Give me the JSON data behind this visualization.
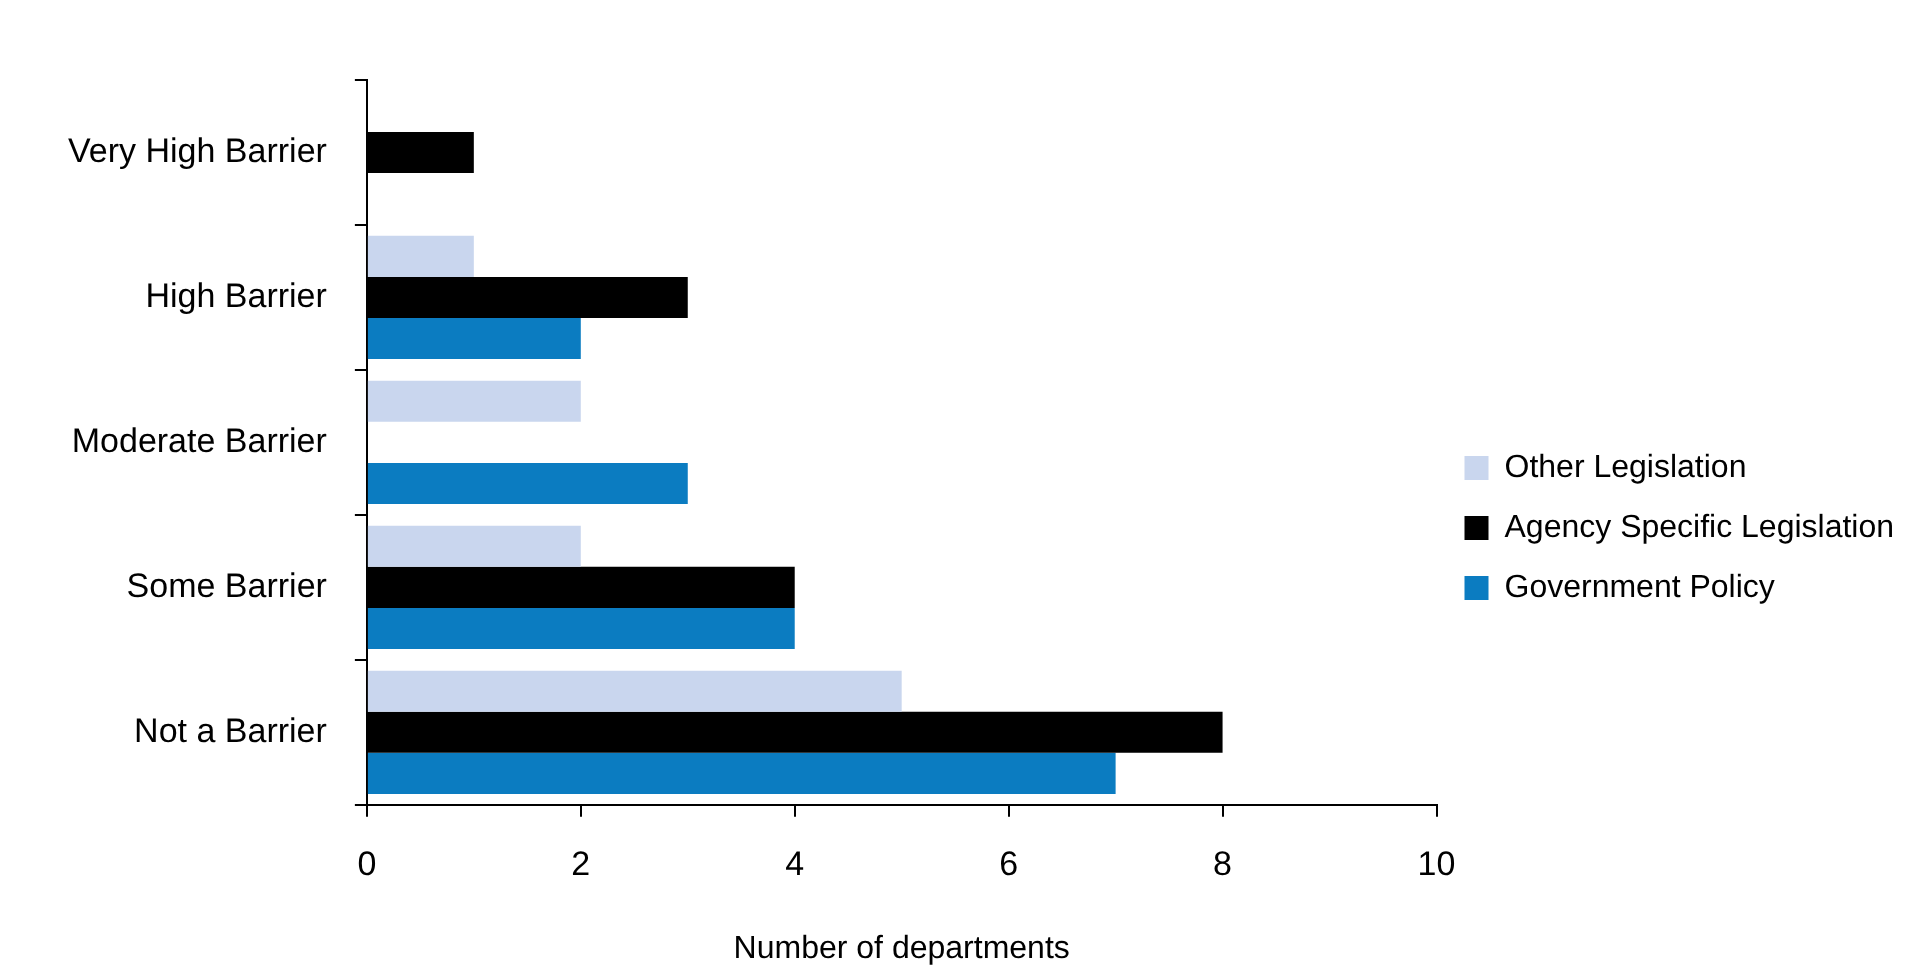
{
  "chart_data": {
    "type": "bar",
    "orientation": "horizontal",
    "xlabel": "Number of departments",
    "categories": [
      "Very High Barrier",
      "High Barrier",
      "Moderate Barrier",
      "Some Barrier",
      "Not a Barrier"
    ],
    "series": [
      {
        "name": "Other Legislation",
        "color": "#c9d6ee",
        "values": [
          null,
          1,
          2,
          2,
          5
        ]
      },
      {
        "name": "Agency Specific Legislation",
        "color": "#000000",
        "values": [
          1,
          3,
          null,
          4,
          8
        ]
      },
      {
        "name": "Government Policy",
        "color": "#0b7cc1",
        "values": [
          null,
          2,
          3,
          4,
          7
        ]
      }
    ],
    "xlim": [
      0,
      10
    ],
    "xticks": [
      0,
      2,
      4,
      6,
      8,
      10
    ],
    "grid": false,
    "legend": "right"
  }
}
